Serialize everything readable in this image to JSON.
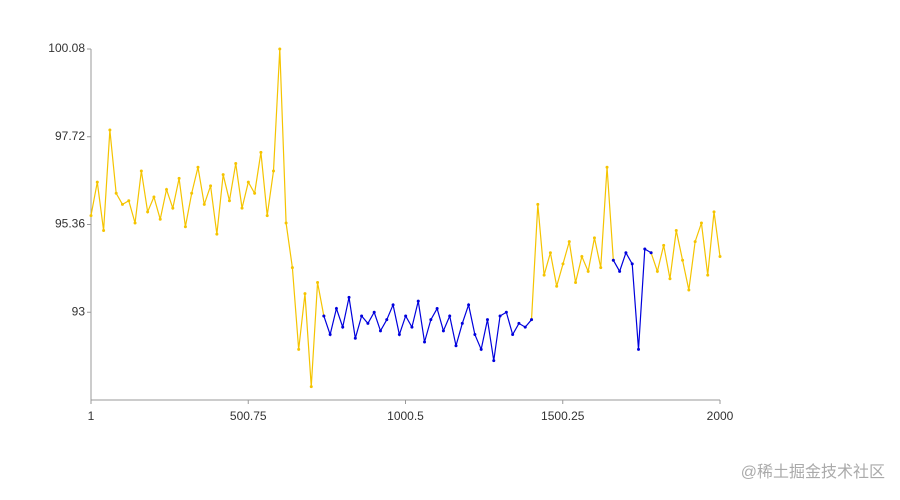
{
  "chart_data": {
    "type": "line",
    "x": [
      1,
      21,
      41,
      61,
      81,
      101,
      121,
      141,
      161,
      181,
      201,
      221,
      241,
      261,
      281,
      301,
      321,
      341,
      361,
      381,
      401,
      421,
      441,
      461,
      481,
      501,
      521,
      541,
      561,
      581,
      601,
      621,
      641,
      661,
      681,
      701,
      721,
      741,
      761,
      781,
      801,
      821,
      841,
      861,
      881,
      901,
      921,
      941,
      961,
      981,
      1001,
      1021,
      1041,
      1061,
      1081,
      1101,
      1121,
      1141,
      1161,
      1181,
      1201,
      1221,
      1241,
      1261,
      1281,
      1301,
      1321,
      1341,
      1361,
      1381,
      1401,
      1421,
      1441,
      1461,
      1481,
      1501,
      1521,
      1541,
      1561,
      1581,
      1601,
      1621,
      1641,
      1661,
      1681,
      1701,
      1721,
      1741,
      1761,
      1781,
      1801,
      1821,
      1841,
      1861,
      1881,
      1901,
      1921,
      1941,
      1961,
      1981,
      2000
    ],
    "series": [
      {
        "color": "#f5c400",
        "values": [
          95.6,
          96.5,
          95.2,
          97.9,
          96.2,
          95.9,
          96.0,
          95.4,
          96.8,
          95.7,
          96.1,
          95.5,
          96.3,
          95.8,
          96.6,
          95.3,
          96.2,
          96.9,
          95.9,
          96.4,
          95.1,
          96.7,
          96.0,
          97.0,
          95.8,
          96.5,
          96.2,
          97.3,
          95.6,
          96.8,
          100.08,
          95.4,
          94.2,
          92.0,
          93.5,
          91.0,
          93.8,
          92.9,
          null,
          null,
          null,
          null,
          null,
          null,
          null,
          null,
          null,
          null,
          null,
          null,
          null,
          null,
          null,
          null,
          null,
          null,
          null,
          null,
          null,
          null,
          null,
          null,
          null,
          null,
          null,
          null,
          null,
          null,
          null,
          null,
          92.8,
          95.9,
          94.0,
          94.6,
          93.7,
          94.3,
          94.9,
          93.8,
          94.5,
          94.1,
          95.0,
          94.2,
          96.9,
          94.4,
          null,
          null,
          null,
          null,
          null,
          94.6,
          94.1,
          94.8,
          93.9,
          95.2,
          94.4,
          93.6,
          94.9,
          95.4,
          94.0,
          95.7,
          94.5
        ]
      },
      {
        "color": "#0000dd",
        "values": [
          null,
          null,
          null,
          null,
          null,
          null,
          null,
          null,
          null,
          null,
          null,
          null,
          null,
          null,
          null,
          null,
          null,
          null,
          null,
          null,
          null,
          null,
          null,
          null,
          null,
          null,
          null,
          null,
          null,
          null,
          null,
          null,
          null,
          null,
          null,
          null,
          null,
          92.9,
          92.4,
          93.1,
          92.6,
          93.4,
          92.3,
          92.9,
          92.7,
          93.0,
          92.5,
          92.8,
          93.2,
          92.4,
          92.9,
          92.6,
          93.3,
          92.2,
          92.8,
          93.1,
          92.5,
          92.9,
          92.1,
          92.7,
          93.2,
          92.4,
          92.0,
          92.8,
          91.7,
          92.9,
          93.0,
          92.4,
          92.7,
          92.6,
          92.8,
          null,
          null,
          null,
          null,
          null,
          null,
          null,
          null,
          null,
          null,
          null,
          null,
          94.4,
          94.1,
          94.6,
          94.3,
          92.0,
          94.7,
          94.6,
          null,
          null,
          null,
          null,
          null,
          null,
          null,
          null,
          null,
          null,
          null
        ]
      }
    ],
    "xlim": [
      1,
      2000
    ],
    "xticks": [
      1,
      500.75,
      1000.5,
      1500.25,
      2000
    ],
    "ylim": [
      90.64,
      100.08
    ],
    "yticks": [
      93,
      95.36,
      97.72,
      100.08
    ],
    "watermark": "@稀土掘金技术社区"
  }
}
